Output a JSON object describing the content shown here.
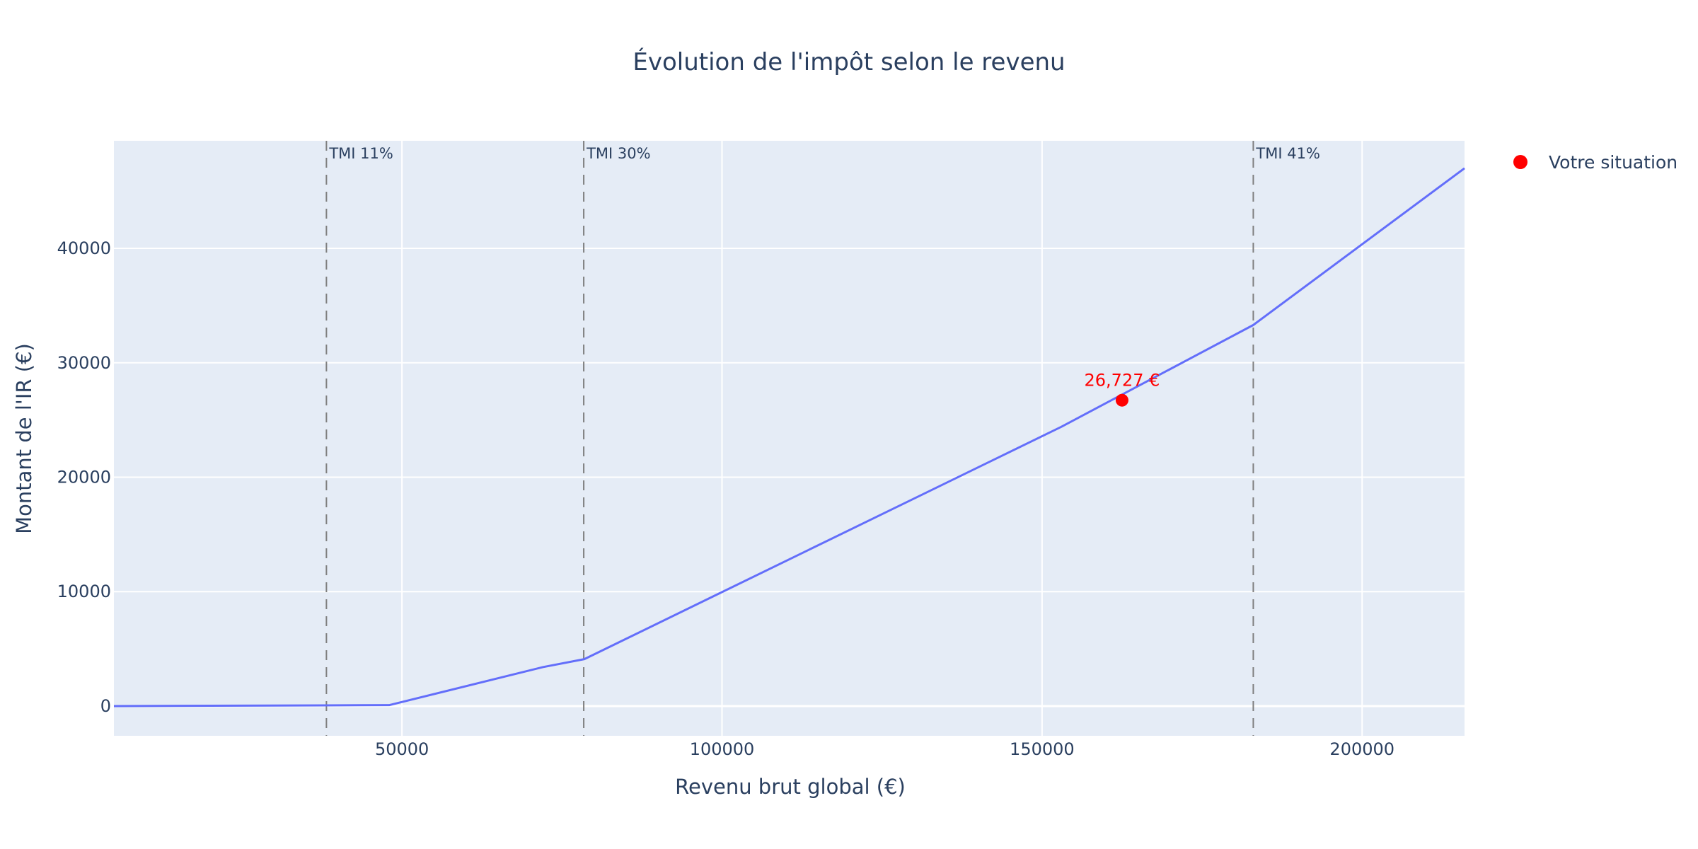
{
  "chart_data": {
    "type": "line",
    "title": "Évolution de l'impôt selon le revenu",
    "xlabel": "Revenu brut global (€)",
    "ylabel": "Montant de l'IR (€)",
    "xlim": [
      5000,
      216000
    ],
    "ylim": [
      -2600,
      49400
    ],
    "xticks": [
      50000,
      100000,
      150000,
      200000
    ],
    "yticks": [
      0,
      10000,
      20000,
      30000,
      40000
    ],
    "grid": true,
    "legend_position": "top-right",
    "series": [
      {
        "color": "#636efa",
        "x": [
          5000,
          38000,
          48000,
          72000,
          78500,
          153000,
          183000,
          216000
        ],
        "y": [
          0,
          60,
          80,
          3400,
          4100,
          24400,
          33300,
          47000
        ]
      }
    ],
    "points": [
      {
        "name": "Votre situation",
        "x": 162500,
        "y": 26727,
        "label": "26,727 €",
        "color": "#ff0000"
      }
    ],
    "vlines": [
      {
        "x": 38200,
        "label": "TMI 11%"
      },
      {
        "x": 78400,
        "label": "TMI 30%"
      },
      {
        "x": 183000,
        "label": "TMI 41%"
      }
    ],
    "colors": {
      "plot_bg": "#e5ecf6",
      "grid": "#ffffff",
      "text": "#2a3f5f",
      "vline": "#7f7f7f"
    }
  }
}
